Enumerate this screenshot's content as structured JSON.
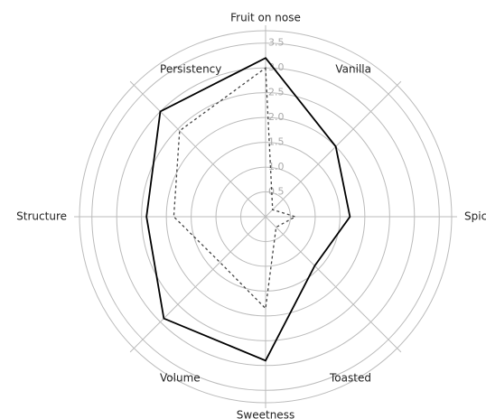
{
  "chart_data": {
    "type": "radar",
    "categories": [
      "Fruit on nose",
      "Vanilla",
      "Spicy",
      "Toasted",
      "Sweetness",
      "Volume",
      "Structure",
      "Persistency"
    ],
    "series": [
      {
        "color": "#000000",
        "dash": false,
        "values": [
          3.2,
          2.0,
          1.7,
          1.4,
          2.9,
          2.9,
          2.4,
          3.0
        ]
      },
      {
        "color": "#444444",
        "dash": true,
        "values": [
          3.0,
          0.2,
          0.6,
          0.3,
          1.85,
          1.3,
          1.85,
          2.45
        ]
      }
    ],
    "ylim": [
      0,
      3.75
    ],
    "yticks": [
      0.5,
      {
        "value": 1.0,
        "label": "1.0"
      },
      1.5,
      {
        "value": 2.0,
        "label": "2.0"
      },
      2.5,
      {
        "value": 3.0,
        "label": "3.0"
      },
      3.5
    ],
    "grid": true
  }
}
